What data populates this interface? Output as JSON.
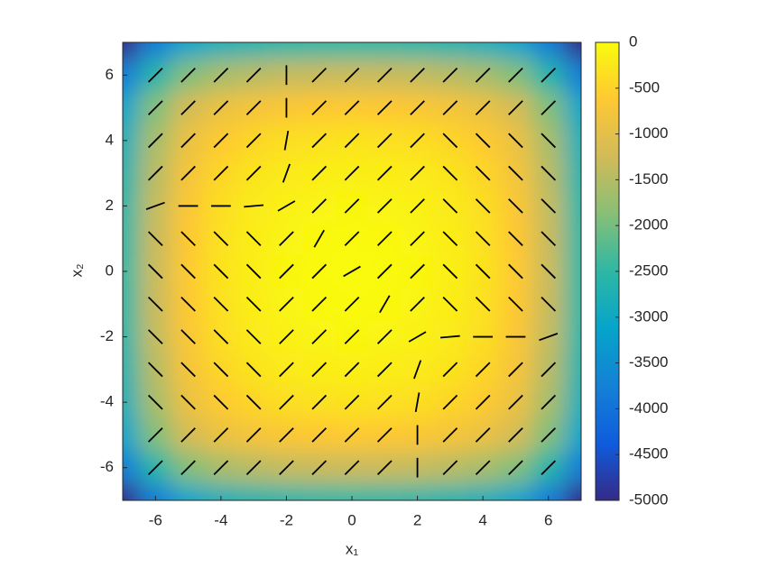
{
  "chart_data": {
    "type": "heatmap-quiver",
    "xlabel": "x₁",
    "ylabel": "x₂",
    "xlim": [
      -7,
      7
    ],
    "ylim": [
      -7,
      7
    ],
    "xticks": [
      -6,
      -4,
      -2,
      0,
      2,
      4,
      6
    ],
    "yticks": [
      -6,
      -4,
      -2,
      0,
      2,
      4,
      6
    ],
    "colormap": "parula",
    "clim": [
      -5000,
      0
    ],
    "cticks": [
      0,
      -500,
      -1000,
      -1500,
      -2000,
      -2500,
      -3000,
      -3500,
      -4000,
      -4500,
      -5000
    ],
    "heatmap": {
      "x": [
        -7,
        -6,
        -5,
        -4,
        -3,
        -2,
        -1,
        0,
        1,
        2,
        3,
        4,
        5,
        6,
        7
      ],
      "y": [
        7,
        6,
        5,
        4,
        3,
        2,
        1,
        0,
        -1,
        -2,
        -3,
        -4,
        -5,
        -6,
        -7
      ],
      "z": [
        [
          -5000,
          -3800,
          -3100,
          -2800,
          -2650,
          -2560,
          -2520,
          -2500,
          -2520,
          -2560,
          -2650,
          -2800,
          -3100,
          -3800,
          -5000
        ],
        [
          -3800,
          -2600,
          -1900,
          -1600,
          -1450,
          -1360,
          -1320,
          -1300,
          -1320,
          -1360,
          -1450,
          -1600,
          -1900,
          -2600,
          -3800
        ],
        [
          -3100,
          -1900,
          -1200,
          -900,
          -750,
          -660,
          -620,
          -600,
          -620,
          -660,
          -750,
          -900,
          -1200,
          -1900,
          -3100
        ],
        [
          -2800,
          -1600,
          -900,
          -600,
          -450,
          -360,
          -320,
          -300,
          -320,
          -360,
          -450,
          -600,
          -900,
          -1600,
          -2800
        ],
        [
          -2650,
          -1450,
          -750,
          -450,
          -300,
          -210,
          -170,
          -150,
          -170,
          -210,
          -300,
          -450,
          -750,
          -1450,
          -2650
        ],
        [
          -2560,
          -1360,
          -660,
          -360,
          -210,
          -120,
          -80,
          -60,
          -80,
          -120,
          -210,
          -360,
          -660,
          -1360,
          -2560
        ],
        [
          -2520,
          -1320,
          -620,
          -320,
          -170,
          -80,
          -40,
          -20,
          -40,
          -80,
          -170,
          -320,
          -620,
          -1320,
          -2520
        ],
        [
          -2500,
          -1300,
          -600,
          -300,
          -150,
          -60,
          -20,
          0,
          -20,
          -60,
          -150,
          -300,
          -600,
          -1300,
          -2500
        ],
        [
          -2520,
          -1320,
          -620,
          -320,
          -170,
          -80,
          -40,
          -20,
          -40,
          -80,
          -170,
          -320,
          -620,
          -1320,
          -2520
        ],
        [
          -2560,
          -1360,
          -660,
          -360,
          -210,
          -120,
          -80,
          -60,
          -80,
          -120,
          -210,
          -360,
          -660,
          -1360,
          -2560
        ],
        [
          -2650,
          -1450,
          -750,
          -450,
          -300,
          -210,
          -170,
          -150,
          -170,
          -210,
          -300,
          -450,
          -750,
          -1450,
          -2650
        ],
        [
          -2800,
          -1600,
          -900,
          -600,
          -450,
          -360,
          -320,
          -300,
          -320,
          -360,
          -450,
          -600,
          -900,
          -1600,
          -2800
        ],
        [
          -3100,
          -1900,
          -1200,
          -900,
          -750,
          -660,
          -620,
          -600,
          -620,
          -660,
          -750,
          -900,
          -1200,
          -1900,
          -3100
        ],
        [
          -3800,
          -2600,
          -1900,
          -1600,
          -1450,
          -1360,
          -1320,
          -1300,
          -1320,
          -1360,
          -1450,
          -1600,
          -1900,
          -2600,
          -3800
        ],
        [
          -5000,
          -3800,
          -3100,
          -2800,
          -2650,
          -2560,
          -2520,
          -2500,
          -2520,
          -2560,
          -2650,
          -2800,
          -3100,
          -3800,
          -5000
        ]
      ]
    },
    "quiver": {
      "color": "#000000",
      "x": [
        -6,
        -5,
        -4,
        -3,
        -2,
        -1,
        0,
        1,
        2,
        3,
        4,
        5,
        6
      ],
      "y": [
        6,
        5,
        4,
        3,
        2,
        1,
        0,
        -1,
        -2,
        -3,
        -4,
        -5,
        -6
      ],
      "angles": [
        [
          45,
          45,
          45,
          45,
          90,
          45,
          45,
          45,
          45,
          45,
          45,
          45,
          45
        ],
        [
          45,
          45,
          45,
          45,
          90,
          45,
          45,
          45,
          45,
          45,
          45,
          45,
          45
        ],
        [
          45,
          45,
          45,
          45,
          80,
          45,
          45,
          45,
          45,
          135,
          135,
          135,
          135
        ],
        [
          45,
          45,
          45,
          45,
          70,
          45,
          45,
          45,
          45,
          135,
          135,
          135,
          135
        ],
        [
          20,
          0,
          0,
          5,
          30,
          45,
          45,
          45,
          45,
          135,
          135,
          135,
          135
        ],
        [
          135,
          135,
          135,
          135,
          45,
          60,
          45,
          45,
          45,
          135,
          135,
          135,
          135
        ],
        [
          135,
          135,
          135,
          135,
          45,
          45,
          30,
          45,
          45,
          135,
          135,
          135,
          135
        ],
        [
          135,
          135,
          135,
          135,
          45,
          45,
          45,
          60,
          45,
          135,
          135,
          135,
          135
        ],
        [
          135,
          135,
          135,
          135,
          45,
          45,
          45,
          45,
          30,
          5,
          0,
          0,
          20
        ],
        [
          135,
          135,
          135,
          135,
          45,
          45,
          45,
          45,
          70,
          45,
          45,
          45,
          45
        ],
        [
          135,
          135,
          135,
          135,
          45,
          45,
          45,
          45,
          80,
          45,
          45,
          45,
          45
        ],
        [
          45,
          45,
          45,
          45,
          45,
          45,
          45,
          45,
          90,
          45,
          45,
          45,
          45
        ],
        [
          45,
          45,
          45,
          45,
          45,
          45,
          45,
          45,
          90,
          45,
          45,
          45,
          45
        ]
      ]
    }
  }
}
